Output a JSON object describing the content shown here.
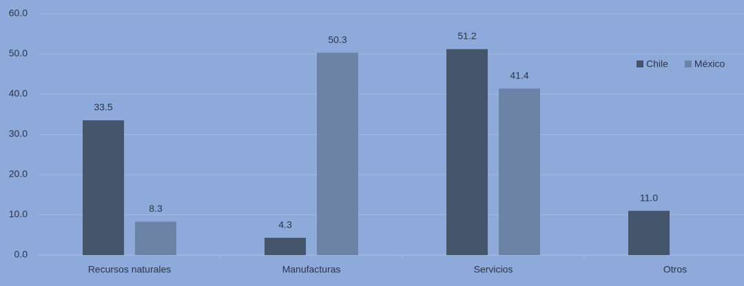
{
  "chart_data": {
    "type": "bar",
    "categories": [
      "Recursos naturales",
      "Manufacturas",
      "Servicios",
      "Otros"
    ],
    "series": [
      {
        "name": "Chile",
        "color": "#44546a",
        "values": [
          33.5,
          4.3,
          51.2,
          11.0
        ],
        "value_labels": [
          "33.5",
          "4.3",
          "51.2",
          "11.0"
        ]
      },
      {
        "name": "México",
        "color": "#6d83a6",
        "values": [
          8.3,
          50.3,
          41.4,
          null
        ],
        "value_labels": [
          "8.3",
          "50.3",
          "41.4",
          null
        ]
      }
    ],
    "ylim": [
      0,
      60
    ],
    "yticks": [
      {
        "value": 0,
        "label": "0.0"
      },
      {
        "value": 10,
        "label": "10.0"
      },
      {
        "value": 20,
        "label": "20.0"
      },
      {
        "value": 30,
        "label": "30.0"
      },
      {
        "value": 40,
        "label": "40.0"
      },
      {
        "value": 50,
        "label": "50.0"
      },
      {
        "value": 60,
        "label": "60.0"
      }
    ],
    "grid": true,
    "legend": "right"
  }
}
